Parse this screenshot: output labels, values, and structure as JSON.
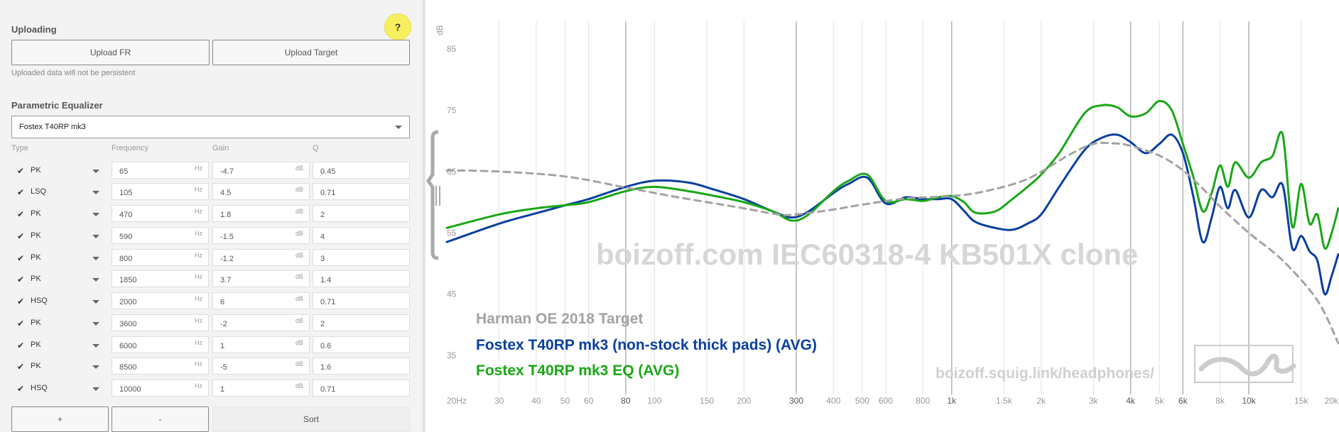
{
  "upload": {
    "title": "Uploading",
    "help_label": "?",
    "upload_fr_label": "Upload FR",
    "upload_target_label": "Upload Target",
    "note": "Uploaded data will not be persistent"
  },
  "peq": {
    "title": "Parametric Equalizer",
    "selected_model": "Fostex T40RP mk3",
    "columns": [
      "Type",
      "Frequency",
      "Gain",
      "Q"
    ],
    "freq_unit": "Hz",
    "gain_unit": "dB",
    "filters": [
      {
        "enabled": true,
        "type": "PK",
        "freq": "65",
        "gain": "-4.7",
        "q": "0.45"
      },
      {
        "enabled": true,
        "type": "LSQ",
        "freq": "105",
        "gain": "4.5",
        "q": "0.71"
      },
      {
        "enabled": true,
        "type": "PK",
        "freq": "470",
        "gain": "1.8",
        "q": "2"
      },
      {
        "enabled": true,
        "type": "PK",
        "freq": "590",
        "gain": "-1.5",
        "q": "4"
      },
      {
        "enabled": true,
        "type": "PK",
        "freq": "800",
        "gain": "-1.2",
        "q": "3"
      },
      {
        "enabled": true,
        "type": "PK",
        "freq": "1850",
        "gain": "3.7",
        "q": "1.4"
      },
      {
        "enabled": true,
        "type": "HSQ",
        "freq": "2000",
        "gain": "6",
        "q": "0.71"
      },
      {
        "enabled": true,
        "type": "PK",
        "freq": "3600",
        "gain": "-2",
        "q": "2"
      },
      {
        "enabled": true,
        "type": "PK",
        "freq": "6000",
        "gain": "1",
        "q": "0.6"
      },
      {
        "enabled": true,
        "type": "PK",
        "freq": "8500",
        "gain": "-5",
        "q": "1.6"
      },
      {
        "enabled": true,
        "type": "HSQ",
        "freq": "10000",
        "gain": "1",
        "q": "0.71"
      }
    ],
    "add_label": "+",
    "remove_label": "-",
    "sort_label": "Sort"
  },
  "colors": {
    "target": "#a3a3a3",
    "original": "#0a3fa0",
    "eq": "#18a815",
    "watermark": "#d6d6d6"
  },
  "chart_data": {
    "type": "line",
    "ylabel": "dB",
    "x_scale": "log",
    "xlim": [
      20,
      20000
    ],
    "ylim": [
      29,
      88
    ],
    "y_ticks": [
      "85",
      "75",
      "65",
      "55",
      "45",
      "35"
    ],
    "y_tick_values": [
      85,
      75,
      65,
      55,
      45,
      35
    ],
    "x_ticks": [
      {
        "label": "20Hz",
        "value": 20,
        "major": false
      },
      {
        "label": "30",
        "value": 30,
        "major": false
      },
      {
        "label": "40",
        "value": 40,
        "major": false
      },
      {
        "label": "50",
        "value": 50,
        "major": false
      },
      {
        "label": "60",
        "value": 60,
        "major": false
      },
      {
        "label": "80",
        "value": 80,
        "major": true
      },
      {
        "label": "100",
        "value": 100,
        "major": false
      },
      {
        "label": "150",
        "value": 150,
        "major": false
      },
      {
        "label": "200",
        "value": 200,
        "major": false
      },
      {
        "label": "300",
        "value": 300,
        "major": true
      },
      {
        "label": "400",
        "value": 400,
        "major": false
      },
      {
        "label": "500",
        "value": 500,
        "major": false
      },
      {
        "label": "600",
        "value": 600,
        "major": false
      },
      {
        "label": "800",
        "value": 800,
        "major": false
      },
      {
        "label": "1k",
        "value": 1000,
        "major": true
      },
      {
        "label": "1.5k",
        "value": 1500,
        "major": false
      },
      {
        "label": "2k",
        "value": 2000,
        "major": false
      },
      {
        "label": "3k",
        "value": 3000,
        "major": false
      },
      {
        "label": "4k",
        "value": 4000,
        "major": true
      },
      {
        "label": "5k",
        "value": 5000,
        "major": false
      },
      {
        "label": "6k",
        "value": 6000,
        "major": true
      },
      {
        "label": "8k",
        "value": 8000,
        "major": false
      },
      {
        "label": "10k",
        "value": 10000,
        "major": true
      },
      {
        "label": "15k",
        "value": 15000,
        "major": false
      },
      {
        "label": "20k",
        "value": 20000,
        "major": false
      }
    ],
    "series": [
      {
        "name": "Harman OE 2018 Target",
        "style": "dashed",
        "x": [
          20,
          30,
          50,
          80,
          120,
          200,
          260,
          300,
          400,
          500,
          700,
          1000,
          1300,
          1800,
          2500,
          3000,
          3500,
          4000,
          5000,
          6000,
          7000,
          8000,
          10000,
          13000,
          17000,
          20000
        ],
        "y": [
          65.2,
          65,
          64.2,
          62.4,
          60.8,
          59,
          58,
          58,
          58.8,
          59.6,
          60.6,
          61,
          61.8,
          63.8,
          67.8,
          69.5,
          69.6,
          69.2,
          67.6,
          65.2,
          62.2,
          59.3,
          55,
          50.5,
          44,
          37
        ]
      },
      {
        "name": "Fostex T40RP mk3 (non-stock thick pads) (AVG)",
        "style": "solid",
        "x": [
          20,
          30,
          40,
          50,
          60,
          80,
          100,
          130,
          160,
          200,
          250,
          290,
          330,
          400,
          450,
          520,
          600,
          700,
          800,
          900,
          1000,
          1100,
          1200,
          1400,
          1600,
          1800,
          2000,
          2300,
          2800,
          3200,
          3600,
          4000,
          4500,
          5000,
          5500,
          6000,
          6500,
          7000,
          7500,
          8000,
          8500,
          9000,
          10000,
          11000,
          12000,
          13000,
          14000,
          15000,
          16000,
          17000,
          18000,
          19000,
          20000
        ],
        "y": [
          53.5,
          56.5,
          58.2,
          59.5,
          60.5,
          62.5,
          63.5,
          63.2,
          62,
          60.5,
          58.5,
          57.5,
          58.5,
          61.5,
          63,
          64,
          59.8,
          60.8,
          60.5,
          60.5,
          60.5,
          58.6,
          56.8,
          55.8,
          55.5,
          56.5,
          58,
          62.5,
          68.5,
          70.5,
          71,
          69.8,
          68,
          69.5,
          71,
          68,
          61,
          53.5,
          57.5,
          62.5,
          59,
          62,
          57.5,
          62,
          60.8,
          62.8,
          52.5,
          54.5,
          52,
          50.5,
          45,
          48,
          51.5
        ]
      },
      {
        "name": "Fostex T40RP mk3 EQ (AVG)",
        "style": "solid",
        "x": [
          20,
          30,
          40,
          50,
          60,
          80,
          100,
          130,
          160,
          200,
          250,
          290,
          330,
          400,
          450,
          520,
          600,
          700,
          800,
          900,
          1000,
          1100,
          1200,
          1400,
          1600,
          1800,
          2000,
          2300,
          2800,
          3200,
          3600,
          4000,
          4500,
          5000,
          5500,
          6000,
          6500,
          7000,
          7500,
          8000,
          8500,
          9000,
          10000,
          11000,
          12000,
          13000,
          14000,
          15000,
          16000,
          17000,
          18000,
          19000,
          20000
        ],
        "y": [
          55.8,
          58,
          59,
          59.5,
          60,
          61.8,
          62.5,
          61.8,
          61,
          60,
          58.5,
          57,
          58,
          61.8,
          63.5,
          64.5,
          60.2,
          60.5,
          60.2,
          60.8,
          61,
          60,
          58.3,
          58.5,
          60.5,
          62.5,
          64.5,
          68,
          74.5,
          75.8,
          75.5,
          74,
          74.5,
          76.5,
          75,
          69.5,
          64.2,
          58.5,
          61.5,
          66,
          62.5,
          66.5,
          64,
          66.5,
          67.5,
          71,
          56,
          63,
          56.5,
          58,
          52.5,
          55,
          59
        ]
      }
    ],
    "watermark": "boizoff.com IEC60318-4 KB501X clone",
    "footer_url": "boizoff.squig.link/headphones/",
    "legend_position": "bottom-left"
  }
}
